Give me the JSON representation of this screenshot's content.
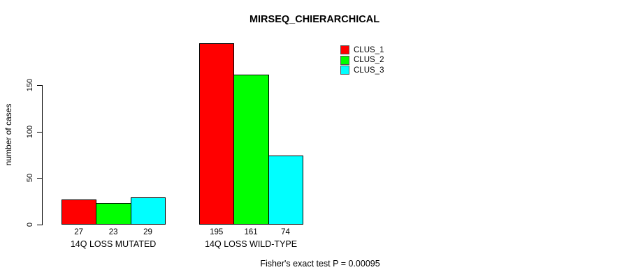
{
  "title": "MIRSEQ_CHIERARCHICAL",
  "footer": "Fisher's exact test P = 0.00095",
  "legend": {
    "items": [
      {
        "label": "CLUS_1",
        "color": "#FF0000"
      },
      {
        "label": "CLUS_2",
        "color": "#00FF00"
      },
      {
        "label": "CLUS_3",
        "color": "#00FFFF"
      }
    ]
  },
  "chart_data": {
    "type": "bar",
    "title": "MIRSEQ_CHIERARCHICAL",
    "xlabel": "",
    "ylabel": "number of cases",
    "categories": [
      "14Q LOSS MUTATED",
      "14Q LOSS WILD-TYPE"
    ],
    "series": [
      {
        "name": "CLUS_1",
        "color": "#FF0000",
        "values": [
          27,
          195
        ]
      },
      {
        "name": "CLUS_2",
        "color": "#00FF00",
        "values": [
          23,
          161
        ]
      },
      {
        "name": "CLUS_3",
        "color": "#00FFFF",
        "values": [
          29,
          74
        ]
      }
    ],
    "bar_value_labels": [
      [
        27,
        23,
        29
      ],
      [
        195,
        161,
        74
      ]
    ],
    "yticks": [
      0,
      50,
      100,
      150
    ],
    "ylim": [
      0,
      200
    ],
    "grid": false,
    "bar_border_color": "#000000",
    "legend_position": "top-right",
    "annotation": "Fisher's exact test P = 0.00095"
  }
}
